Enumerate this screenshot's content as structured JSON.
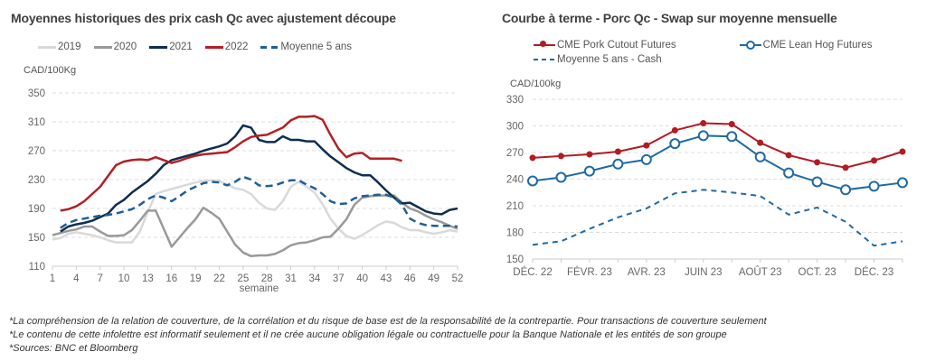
{
  "chart_data": [
    {
      "type": "line",
      "title": "Moyennes historiques des prix cash Qc avec ajustement découpe",
      "ylabel": "CAD/100Kg",
      "xlabel": "semaine",
      "ylim": [
        110,
        350
      ],
      "yticks": [
        110,
        150,
        190,
        230,
        270,
        310,
        350
      ],
      "xlim": [
        1,
        52
      ],
      "xticks": [
        1,
        4,
        7,
        10,
        13,
        16,
        19,
        22,
        25,
        28,
        31,
        34,
        37,
        40,
        43,
        46,
        49,
        52
      ],
      "grid": true,
      "legend": "top",
      "series": [
        {
          "name": "2019",
          "color": "#d9d9d9",
          "dash": false,
          "start": 1,
          "values": [
            147,
            149,
            155,
            157,
            155,
            153,
            150,
            146,
            143,
            143,
            143,
            158,
            185,
            210,
            214,
            217,
            220,
            223,
            226,
            228,
            229,
            228,
            223,
            218,
            216,
            210,
            198,
            190,
            188,
            200,
            220,
            227,
            220,
            212,
            196,
            176,
            162,
            152,
            148,
            153,
            160,
            167,
            172,
            170,
            164,
            160,
            160,
            157,
            155,
            157,
            160,
            158
          ]
        },
        {
          "name": "2020",
          "color": "#999999",
          "dash": false,
          "start": 1,
          "values": [
            153,
            156,
            159,
            161,
            165,
            165,
            158,
            152,
            152,
            153,
            160,
            173,
            187,
            187,
            162,
            137,
            150,
            163,
            175,
            191,
            184,
            176,
            158,
            140,
            129,
            124,
            125,
            125,
            127,
            132,
            139,
            142,
            143,
            146,
            150,
            151,
            162,
            175,
            195,
            205,
            207,
            208,
            208,
            208,
            198,
            190,
            186,
            180,
            175,
            171,
            166,
            162
          ]
        },
        {
          "name": "2021",
          "color": "#0d2e4e",
          "dash": false,
          "start": 2,
          "values": [
            158,
            165,
            168,
            170,
            173,
            178,
            183,
            195,
            202,
            212,
            220,
            228,
            238,
            250,
            257,
            260,
            263,
            266,
            270,
            273,
            276,
            280,
            290,
            305,
            302,
            285,
            282,
            282,
            290,
            285,
            285,
            283,
            283,
            272,
            262,
            254,
            246,
            240,
            236,
            236,
            226,
            215,
            205,
            197,
            198,
            192,
            186,
            183,
            182,
            188,
            190
          ]
        },
        {
          "name": "2022",
          "color": "#b22025",
          "dash": false,
          "start": 2,
          "values": [
            187,
            189,
            193,
            200,
            210,
            220,
            235,
            250,
            255,
            257,
            258,
            257,
            261,
            257,
            253,
            256,
            260,
            263,
            265,
            266,
            267,
            268,
            275,
            283,
            289,
            291,
            292,
            297,
            302,
            312,
            317,
            317,
            318,
            313,
            292,
            273,
            261,
            266,
            267,
            259,
            259,
            259,
            259,
            256
          ]
        },
        {
          "name": "Moyenne 5 ans",
          "color": "#1f5f96",
          "dash": true,
          "start": 2,
          "values": [
            163,
            170,
            174,
            176,
            178,
            180,
            181,
            183,
            186,
            189,
            195,
            203,
            208,
            205,
            200,
            207,
            215,
            220,
            225,
            227,
            226,
            222,
            227,
            234,
            230,
            222,
            221,
            222,
            226,
            229,
            229,
            223,
            218,
            210,
            200,
            196,
            197,
            204,
            207,
            208,
            209,
            209,
            205,
            195,
            176,
            170,
            167,
            166,
            166,
            166,
            165
          ]
        }
      ]
    },
    {
      "type": "line",
      "title": "Courbe à terme - Porc Qc - Swap sur moyenne mensuelle",
      "ylabel": "CAD/100kg",
      "ylim": [
        150,
        330
      ],
      "yticks": [
        150,
        180,
        210,
        240,
        270,
        300,
        330
      ],
      "categories": [
        "DÉC. 22",
        "JANV. 23",
        "FÉVR. 23",
        "MARS 23",
        "AVR. 23",
        "MAI 23",
        "JUIN 23",
        "JUIL. 23",
        "AOÛT 23",
        "SEPT. 23",
        "OCT. 23",
        "NOV. 23",
        "DÉC. 23",
        "JANV. 24"
      ],
      "tick_labels": [
        "DÉC. 22",
        "FÉVR. 23",
        "AVR. 23",
        "JUIN 23",
        "AOÛT 23",
        "OCT. 23",
        "DÉC. 23"
      ],
      "grid": true,
      "legend": "top",
      "series": [
        {
          "name": "CME Pork Cutout Futures",
          "color": "#b01c22",
          "marker": "filled",
          "values": [
            264,
            266,
            268,
            271,
            278,
            295,
            303,
            302,
            281,
            267,
            259,
            253,
            261,
            271
          ]
        },
        {
          "name": "CME Lean Hog Futures",
          "color": "#1f6aa5",
          "marker": "hollow",
          "values": [
            238,
            242,
            249,
            257,
            262,
            280,
            289,
            288,
            265,
            247,
            237,
            228,
            232,
            236
          ]
        },
        {
          "name": "Moyenne 5 ans - Cash",
          "color": "#1f6aa5",
          "marker": "dash",
          "values": [
            166,
            170,
            184,
            197,
            207,
            224,
            228,
            225,
            221,
            200,
            208,
            192,
            165,
            170
          ]
        }
      ]
    }
  ],
  "footnotes": [
    "*La compréhension de la relation de couverture, de la corrélation et du risque de base est de la responsabilité de la contrepartie. Pour transactions de couverture seulement",
    "*Le contenu de cette infolettre est informatif seulement et il ne crée aucune obligation légale ou contractuelle pour la Banque Nationale et les entités de son groupe",
    "*Sources: BNC et Bloomberg"
  ]
}
